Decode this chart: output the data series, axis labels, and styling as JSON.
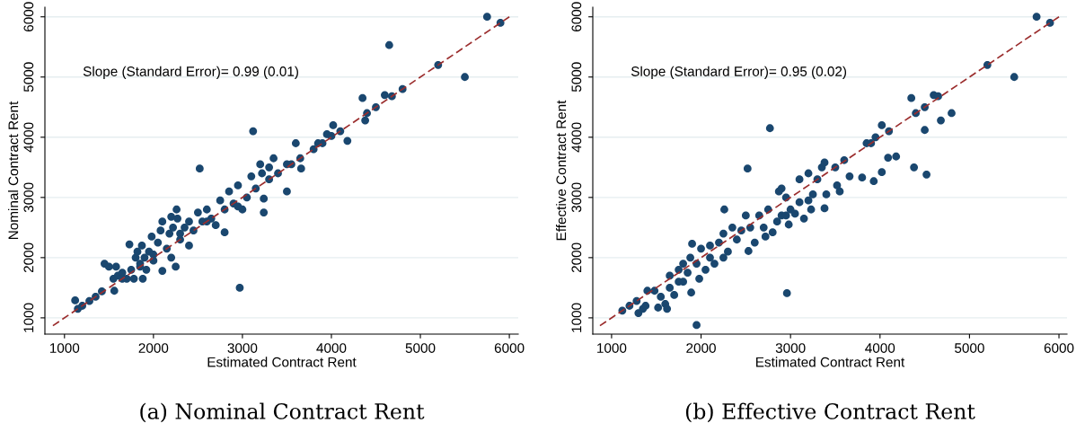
{
  "chart_data": [
    {
      "type": "scatter",
      "title": "(a) Nominal Contract Rent",
      "xlabel": "Estimated Contract Rent",
      "ylabel": "Nominal Contract Rent",
      "annotations": [
        "Slope (Standard Error)= 0.99 (0.01)"
      ],
      "xlim": [
        780,
        6100
      ],
      "ylim": [
        730,
        6160
      ],
      "xticks": [
        1000,
        2000,
        3000,
        4000,
        5000,
        6000
      ],
      "yticks": [
        1000,
        2000,
        3000,
        4000,
        5000,
        6000
      ],
      "grid": "y",
      "marker": "circle",
      "series": [
        {
          "color": "#1a476f",
          "x": [
            1120,
            1150,
            1200,
            1280,
            1350,
            1420,
            1450,
            1500,
            1550,
            1560,
            1580,
            1600,
            1650,
            1650,
            1700,
            1730,
            1750,
            1780,
            1800,
            1820,
            1850,
            1850,
            1870,
            1880,
            1900,
            1920,
            1950,
            1980,
            2000,
            2000,
            2050,
            2080,
            2100,
            2100,
            2150,
            2180,
            2200,
            2200,
            2220,
            2250,
            2260,
            2270,
            2300,
            2300,
            2350,
            2400,
            2400,
            2450,
            2500,
            2520,
            2550,
            2600,
            2600,
            2650,
            2700,
            2750,
            2800,
            2800,
            2850,
            2900,
            2950,
            2950,
            2970,
            3000,
            3050,
            3100,
            3120,
            3150,
            3200,
            3220,
            3240,
            3240,
            3300,
            3300,
            3350,
            3400,
            3500,
            3500,
            3550,
            3600,
            3650,
            3660,
            3800,
            3850,
            3900,
            3950,
            4000,
            4020,
            4100,
            4180,
            4350,
            4380,
            4400,
            4500,
            4600,
            4650,
            4680,
            4800,
            5200,
            5500,
            5750,
            5900
          ],
          "values": [
            1290,
            1150,
            1200,
            1280,
            1350,
            1440,
            1900,
            1850,
            1650,
            1450,
            1850,
            1700,
            1750,
            1650,
            1650,
            2220,
            1800,
            1650,
            2000,
            2100,
            1900,
            1850,
            2200,
            1650,
            2000,
            1800,
            2100,
            2350,
            1950,
            2050,
            2250,
            2450,
            1780,
            2600,
            2150,
            2400,
            2000,
            2680,
            2500,
            1850,
            2800,
            2650,
            2400,
            2300,
            2500,
            2200,
            2600,
            2450,
            2750,
            3480,
            2600,
            2800,
            2600,
            2650,
            2540,
            2950,
            2420,
            2800,
            3100,
            2900,
            3200,
            2850,
            1500,
            2800,
            3000,
            3350,
            4100,
            3150,
            3550,
            3400,
            2980,
            2750,
            3500,
            3300,
            3650,
            3400,
            3100,
            3550,
            3550,
            3900,
            3650,
            3480,
            3800,
            3900,
            3900,
            4050,
            4020,
            4200,
            4100,
            3940,
            4650,
            4280,
            4400,
            4500,
            4700,
            5530,
            4680,
            4800,
            5200,
            5000,
            6000,
            5900
          ]
        },
        {
          "type": "line",
          "color": "#9b2d2d",
          "line_style": "dashed",
          "marker": "none",
          "x": [
            870,
            6000
          ],
          "values": [
            870,
            6000
          ]
        }
      ]
    },
    {
      "type": "scatter",
      "title": "(b) Effective Contract Rent",
      "xlabel": "Estimated Contract Rent",
      "ylabel": "Effective Contract Rent",
      "annotations": [
        "Slope (Standard Error)= 0.95 (0.02)"
      ],
      "xlim": [
        790,
        6090
      ],
      "ylim": [
        730,
        6160
      ],
      "xticks": [
        1000,
        2000,
        3000,
        4000,
        5000,
        6000
      ],
      "yticks": [
        1000,
        2000,
        3000,
        4000,
        5000,
        6000
      ],
      "grid": "y",
      "marker": "circle",
      "series": [
        {
          "color": "#1a476f",
          "x": [
            1120,
            1200,
            1280,
            1300,
            1350,
            1380,
            1400,
            1480,
            1520,
            1550,
            1600,
            1620,
            1650,
            1650,
            1700,
            1750,
            1750,
            1800,
            1800,
            1850,
            1880,
            1890,
            1900,
            1950,
            1950,
            1980,
            2000,
            2050,
            2100,
            2100,
            2150,
            2200,
            2250,
            2250,
            2260,
            2300,
            2350,
            2400,
            2450,
            2500,
            2520,
            2530,
            2550,
            2600,
            2650,
            2700,
            2720,
            2750,
            2770,
            2800,
            2850,
            2870,
            2900,
            2900,
            2950,
            2950,
            2960,
            2980,
            3000,
            3050,
            3100,
            3100,
            3150,
            3200,
            3200,
            3230,
            3250,
            3300,
            3350,
            3380,
            3380,
            3400,
            3500,
            3520,
            3550,
            3600,
            3660,
            3800,
            3850,
            3900,
            3930,
            3950,
            4020,
            4020,
            4090,
            4100,
            4180,
            4350,
            4380,
            4400,
            4500,
            4500,
            4520,
            4600,
            4650,
            4680,
            4800,
            5200,
            5500,
            5750,
            5900
          ],
          "values": [
            1120,
            1200,
            1280,
            1080,
            1150,
            1200,
            1450,
            1450,
            1170,
            1350,
            1230,
            1150,
            1700,
            1500,
            1380,
            1800,
            1600,
            1900,
            1600,
            1750,
            2000,
            1420,
            2230,
            880,
            1900,
            1650,
            2150,
            1800,
            2000,
            2200,
            1900,
            2250,
            2000,
            2400,
            2800,
            2100,
            2500,
            2300,
            2450,
            2700,
            3480,
            2110,
            2500,
            2250,
            2700,
            2500,
            2350,
            2800,
            4150,
            2420,
            2600,
            3100,
            3150,
            2700,
            3000,
            2700,
            1410,
            2550,
            2800,
            2730,
            3300,
            2920,
            2650,
            3400,
            2950,
            2800,
            3050,
            3300,
            3500,
            2820,
            3580,
            3050,
            3500,
            3200,
            3100,
            3620,
            3350,
            3330,
            3900,
            3900,
            3270,
            4000,
            4200,
            3420,
            3660,
            4100,
            3680,
            4650,
            3500,
            4400,
            4500,
            4120,
            3380,
            4700,
            4680,
            4280,
            4400,
            5200,
            5000,
            6000,
            5900
          ]
        },
        {
          "type": "line",
          "color": "#9b2d2d",
          "line_style": "dashed",
          "marker": "none",
          "x": [
            870,
            6000
          ],
          "values": [
            870,
            6000
          ]
        }
      ]
    }
  ]
}
